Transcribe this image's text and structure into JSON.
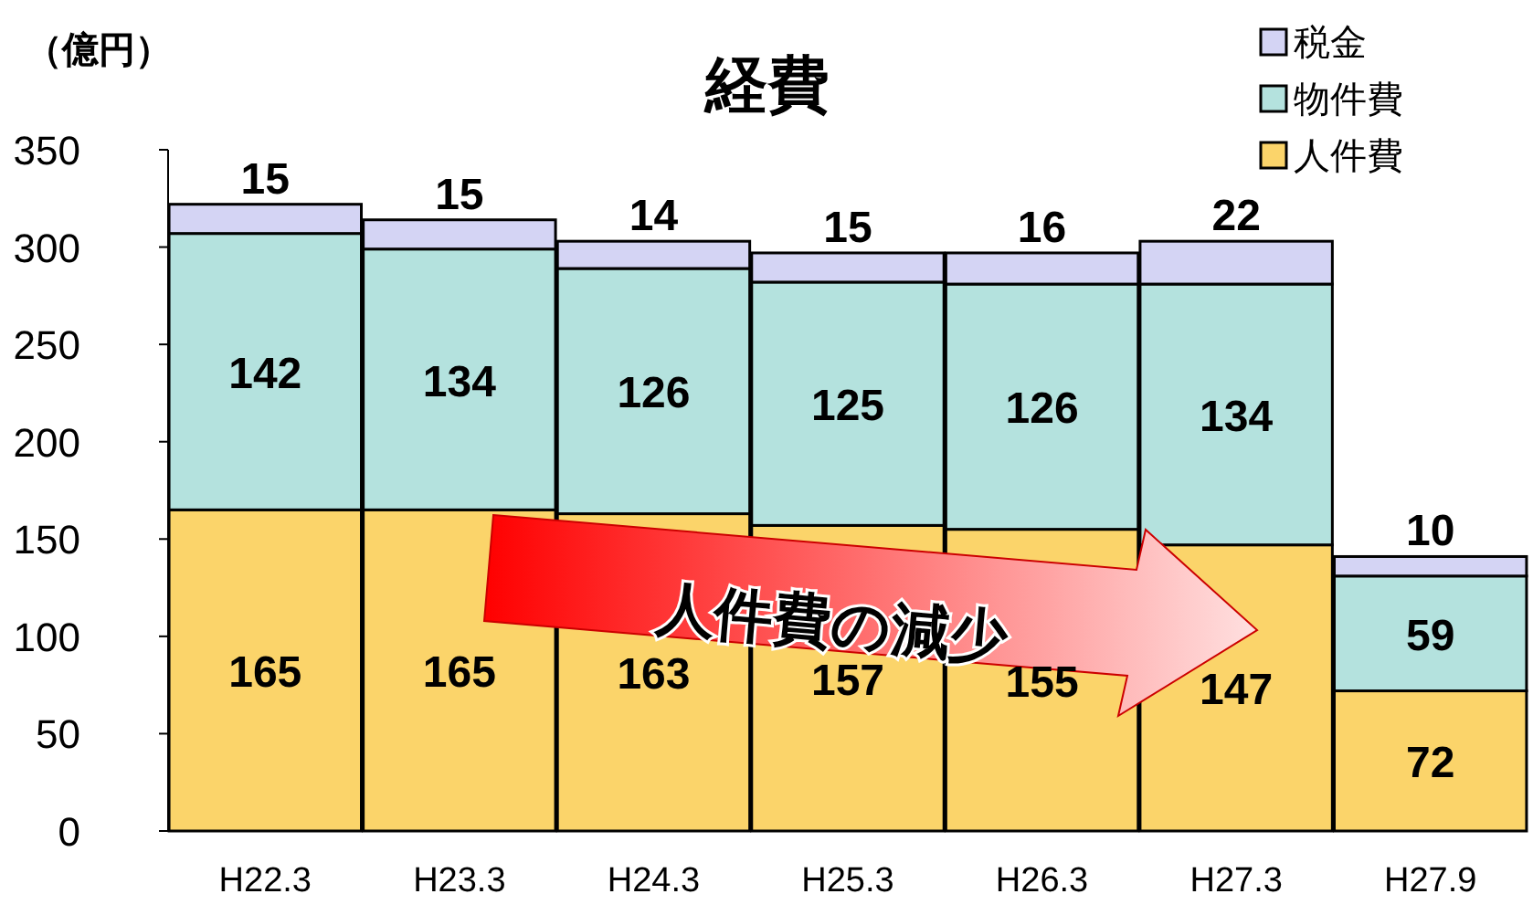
{
  "chart_data": {
    "type": "bar",
    "title": "経費",
    "ylabel": "（億円）",
    "stacked": true,
    "data_labels": true,
    "legend": "top right",
    "grid": false,
    "categories": [
      "H22.3",
      "H23.3",
      "H24.3",
      "H25.3",
      "H26.3",
      "H27.3",
      "H27.9"
    ],
    "series": [
      {
        "name": "人件費",
        "color": "#fbd46a",
        "values": [
          165,
          165,
          163,
          157,
          155,
          147,
          72
        ]
      },
      {
        "name": "物件費",
        "color": "#b4e2de",
        "values": [
          142,
          134,
          126,
          125,
          126,
          134,
          59
        ]
      },
      {
        "name": "税金",
        "color": "#d4d4f4",
        "values": [
          15,
          15,
          14,
          15,
          16,
          22,
          10
        ]
      }
    ],
    "ylim": [
      0,
      350
    ],
    "yticks": [
      0,
      50,
      100,
      150,
      200,
      250,
      300,
      350
    ],
    "annotations": [
      "人件費の減少"
    ]
  }
}
